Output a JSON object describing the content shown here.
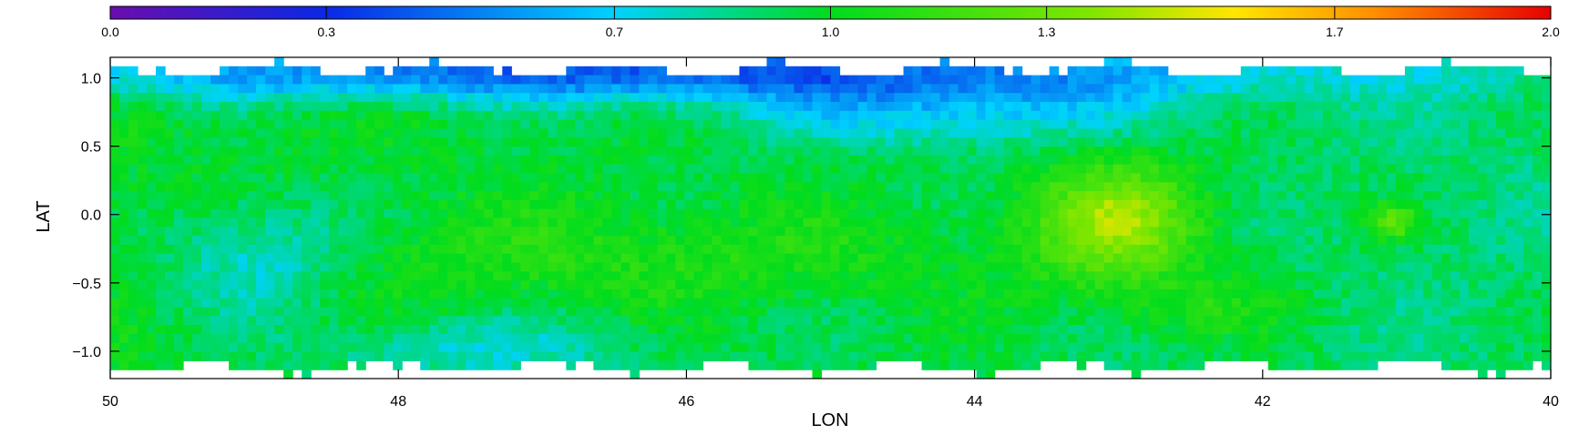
{
  "chart_data": {
    "type": "heatmap",
    "title": "",
    "xlabel": "LON",
    "ylabel": "LAT",
    "xlim": [
      50,
      40
    ],
    "ylim": [
      -1.2,
      1.15
    ],
    "xticks": [
      50,
      48,
      46,
      44,
      42,
      40
    ],
    "xtick_labels": [
      "50",
      "48",
      "46",
      "44",
      "42",
      "40"
    ],
    "yticks": [
      1.0,
      0.5,
      0.0,
      -0.5,
      -1.0
    ],
    "ytick_labels": [
      "1.0",
      "0.5",
      "0.0",
      "−0.5",
      "−1.0"
    ],
    "colorbar": {
      "range": [
        0.0,
        2.0
      ],
      "ticks": [
        0.0,
        0.3,
        0.7,
        1.0,
        1.3,
        1.7,
        2.0
      ],
      "tick_labels": [
        "0.0",
        "0.3",
        "0.7",
        "1.0",
        "1.3",
        "1.7",
        "2.0"
      ],
      "colormap": "rainbow (purple-blue-cyan-green-yellow-orange-red)",
      "colors": [
        "#6a0dad",
        "#0a28e6",
        "#00d2ff",
        "#00dc1e",
        "#ffe600",
        "#ff8c00",
        "#e60000"
      ]
    },
    "grid": false,
    "field": {
      "background": 0.95,
      "features": [
        {
          "name": "northern low band",
          "lon": 46.5,
          "lat": 1.0,
          "value": 0.45
        },
        {
          "name": "central green ridge",
          "lon": 46.0,
          "lat": -0.3,
          "value": 1.05
        },
        {
          "name": "bright region",
          "lon": 43.0,
          "lat": -0.05,
          "value": 1.42
        },
        {
          "name": "compact source",
          "lon": 41.1,
          "lat": -0.05,
          "value": 1.35
        }
      ]
    }
  }
}
